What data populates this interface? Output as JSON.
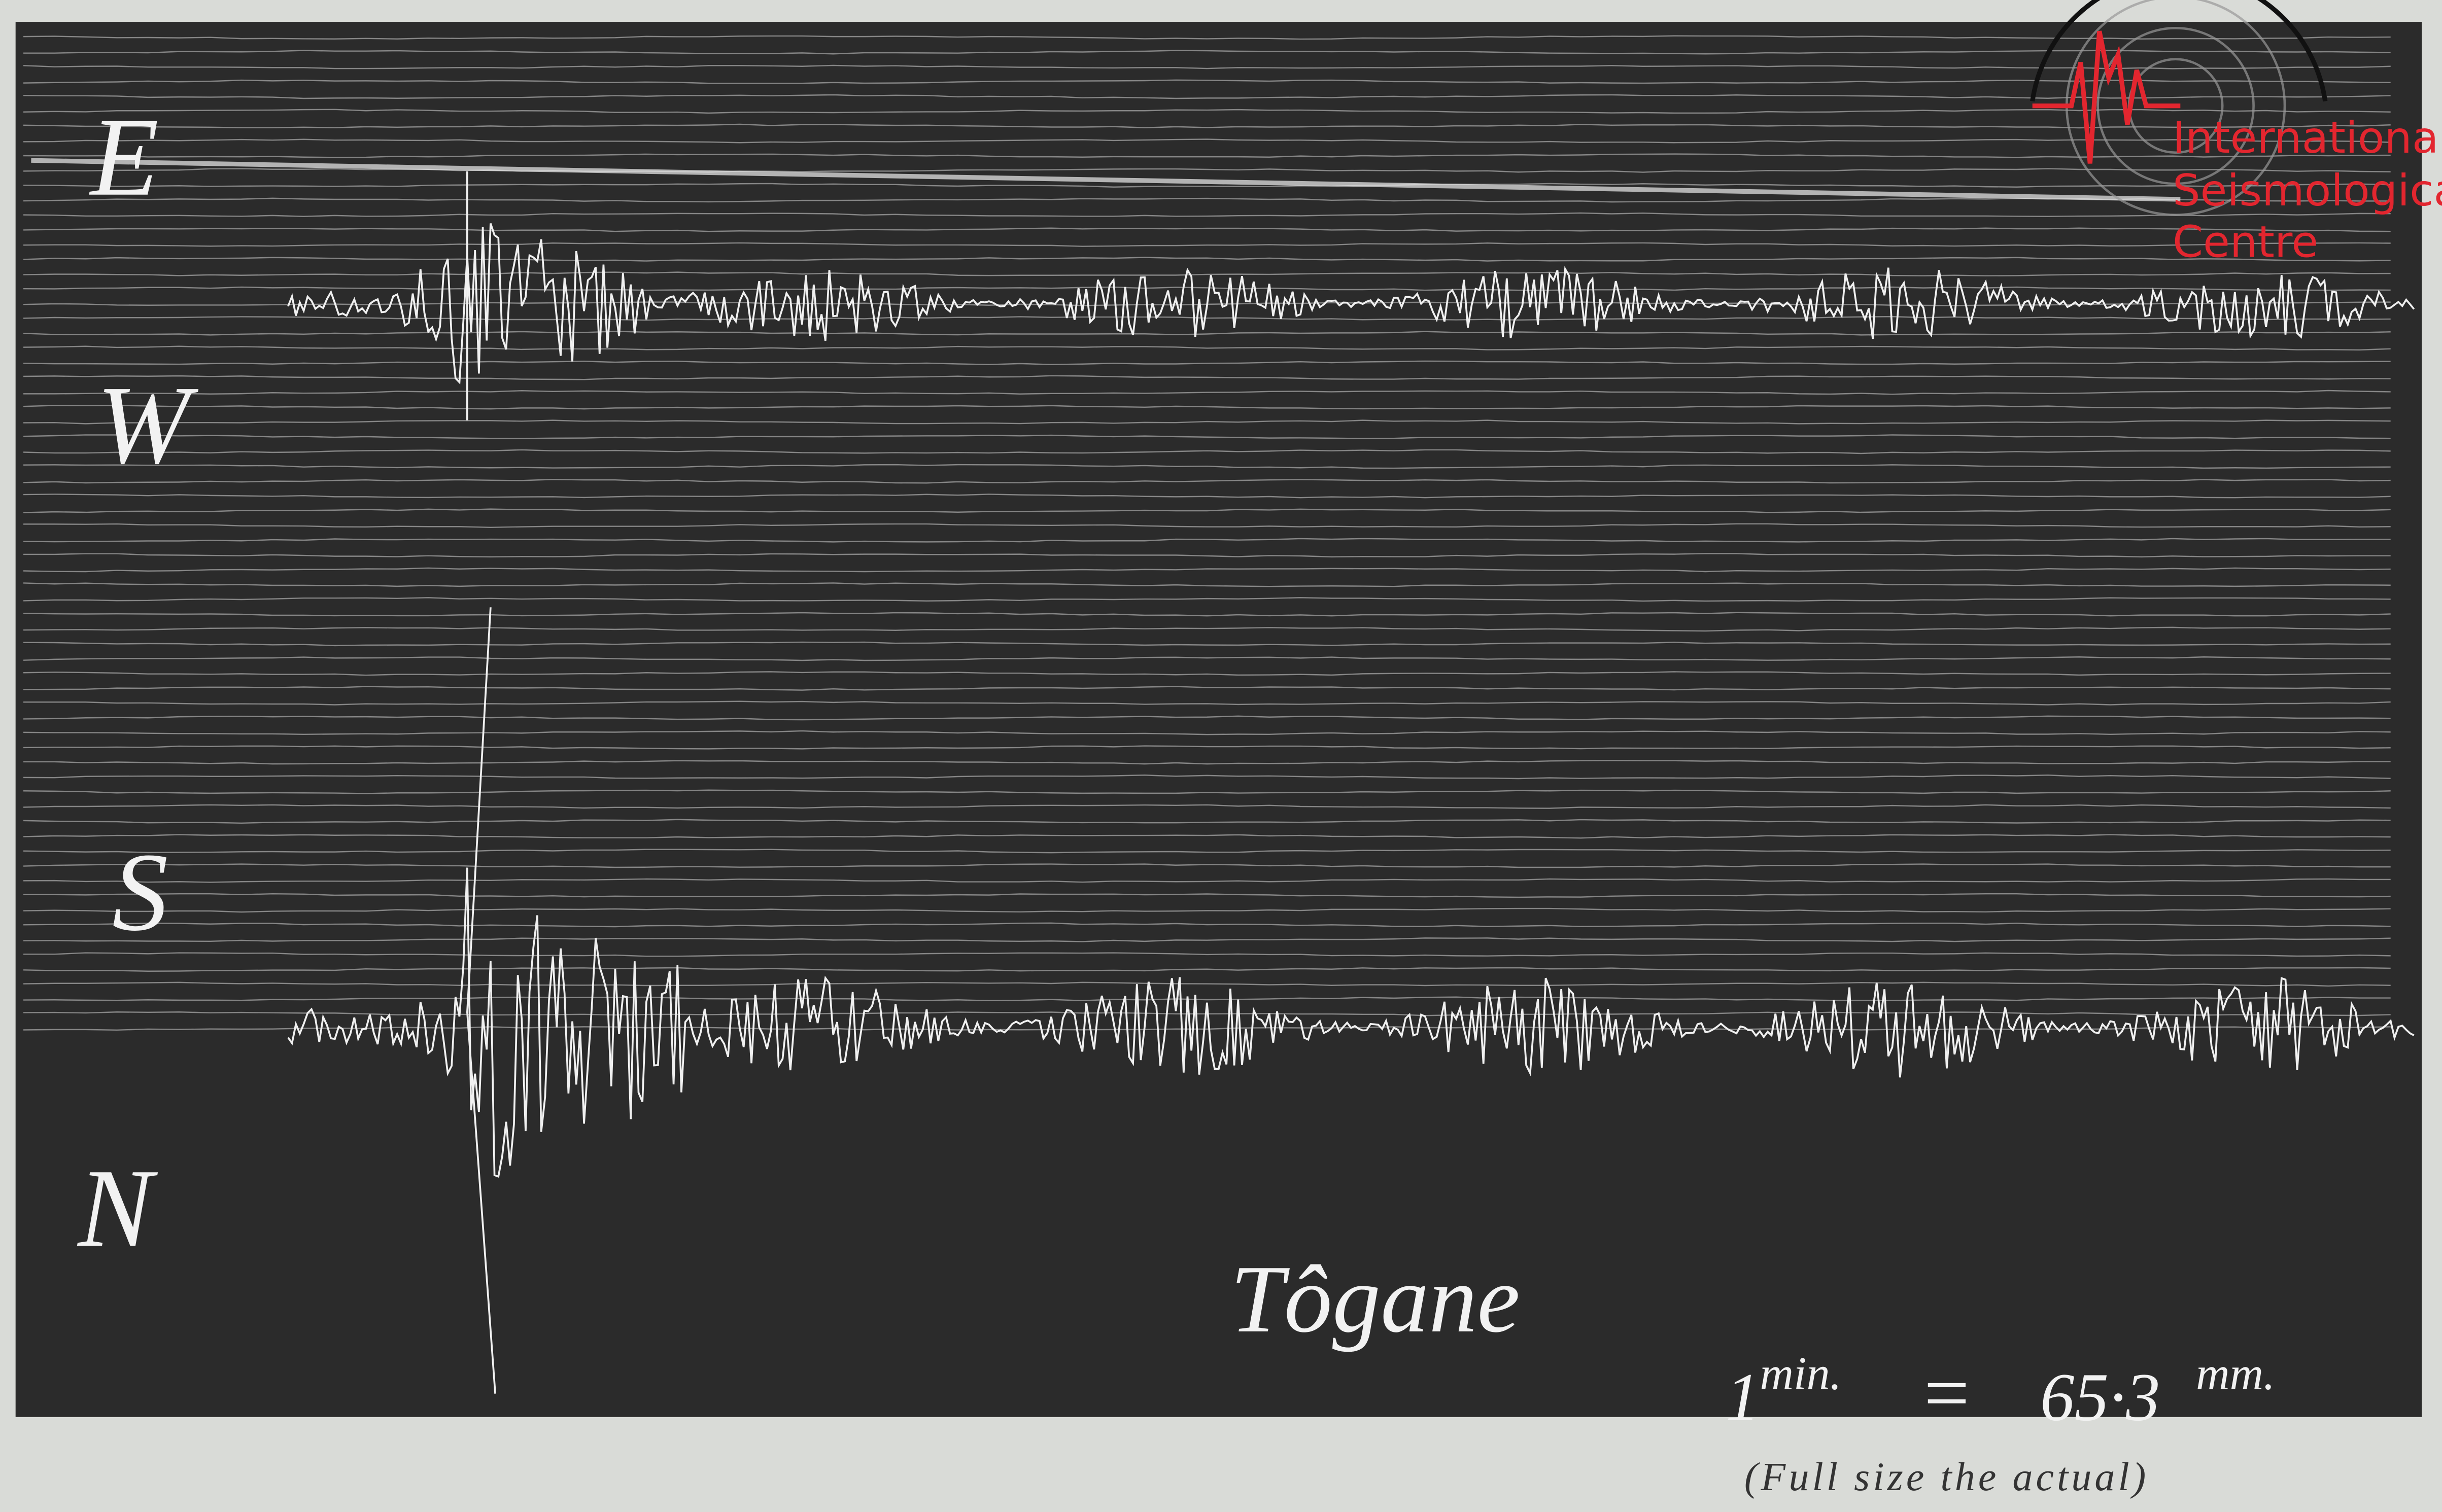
{
  "components": [
    "E",
    "W",
    "S",
    "N"
  ],
  "station": "Tôgane",
  "scale": {
    "one": "1",
    "min": "min.",
    "equals": "=",
    "value": "65·3",
    "unit": "mm."
  },
  "caption": "(Full size the actual)",
  "logo": {
    "lines": [
      "International",
      "Seismological",
      "Centre"
    ]
  }
}
